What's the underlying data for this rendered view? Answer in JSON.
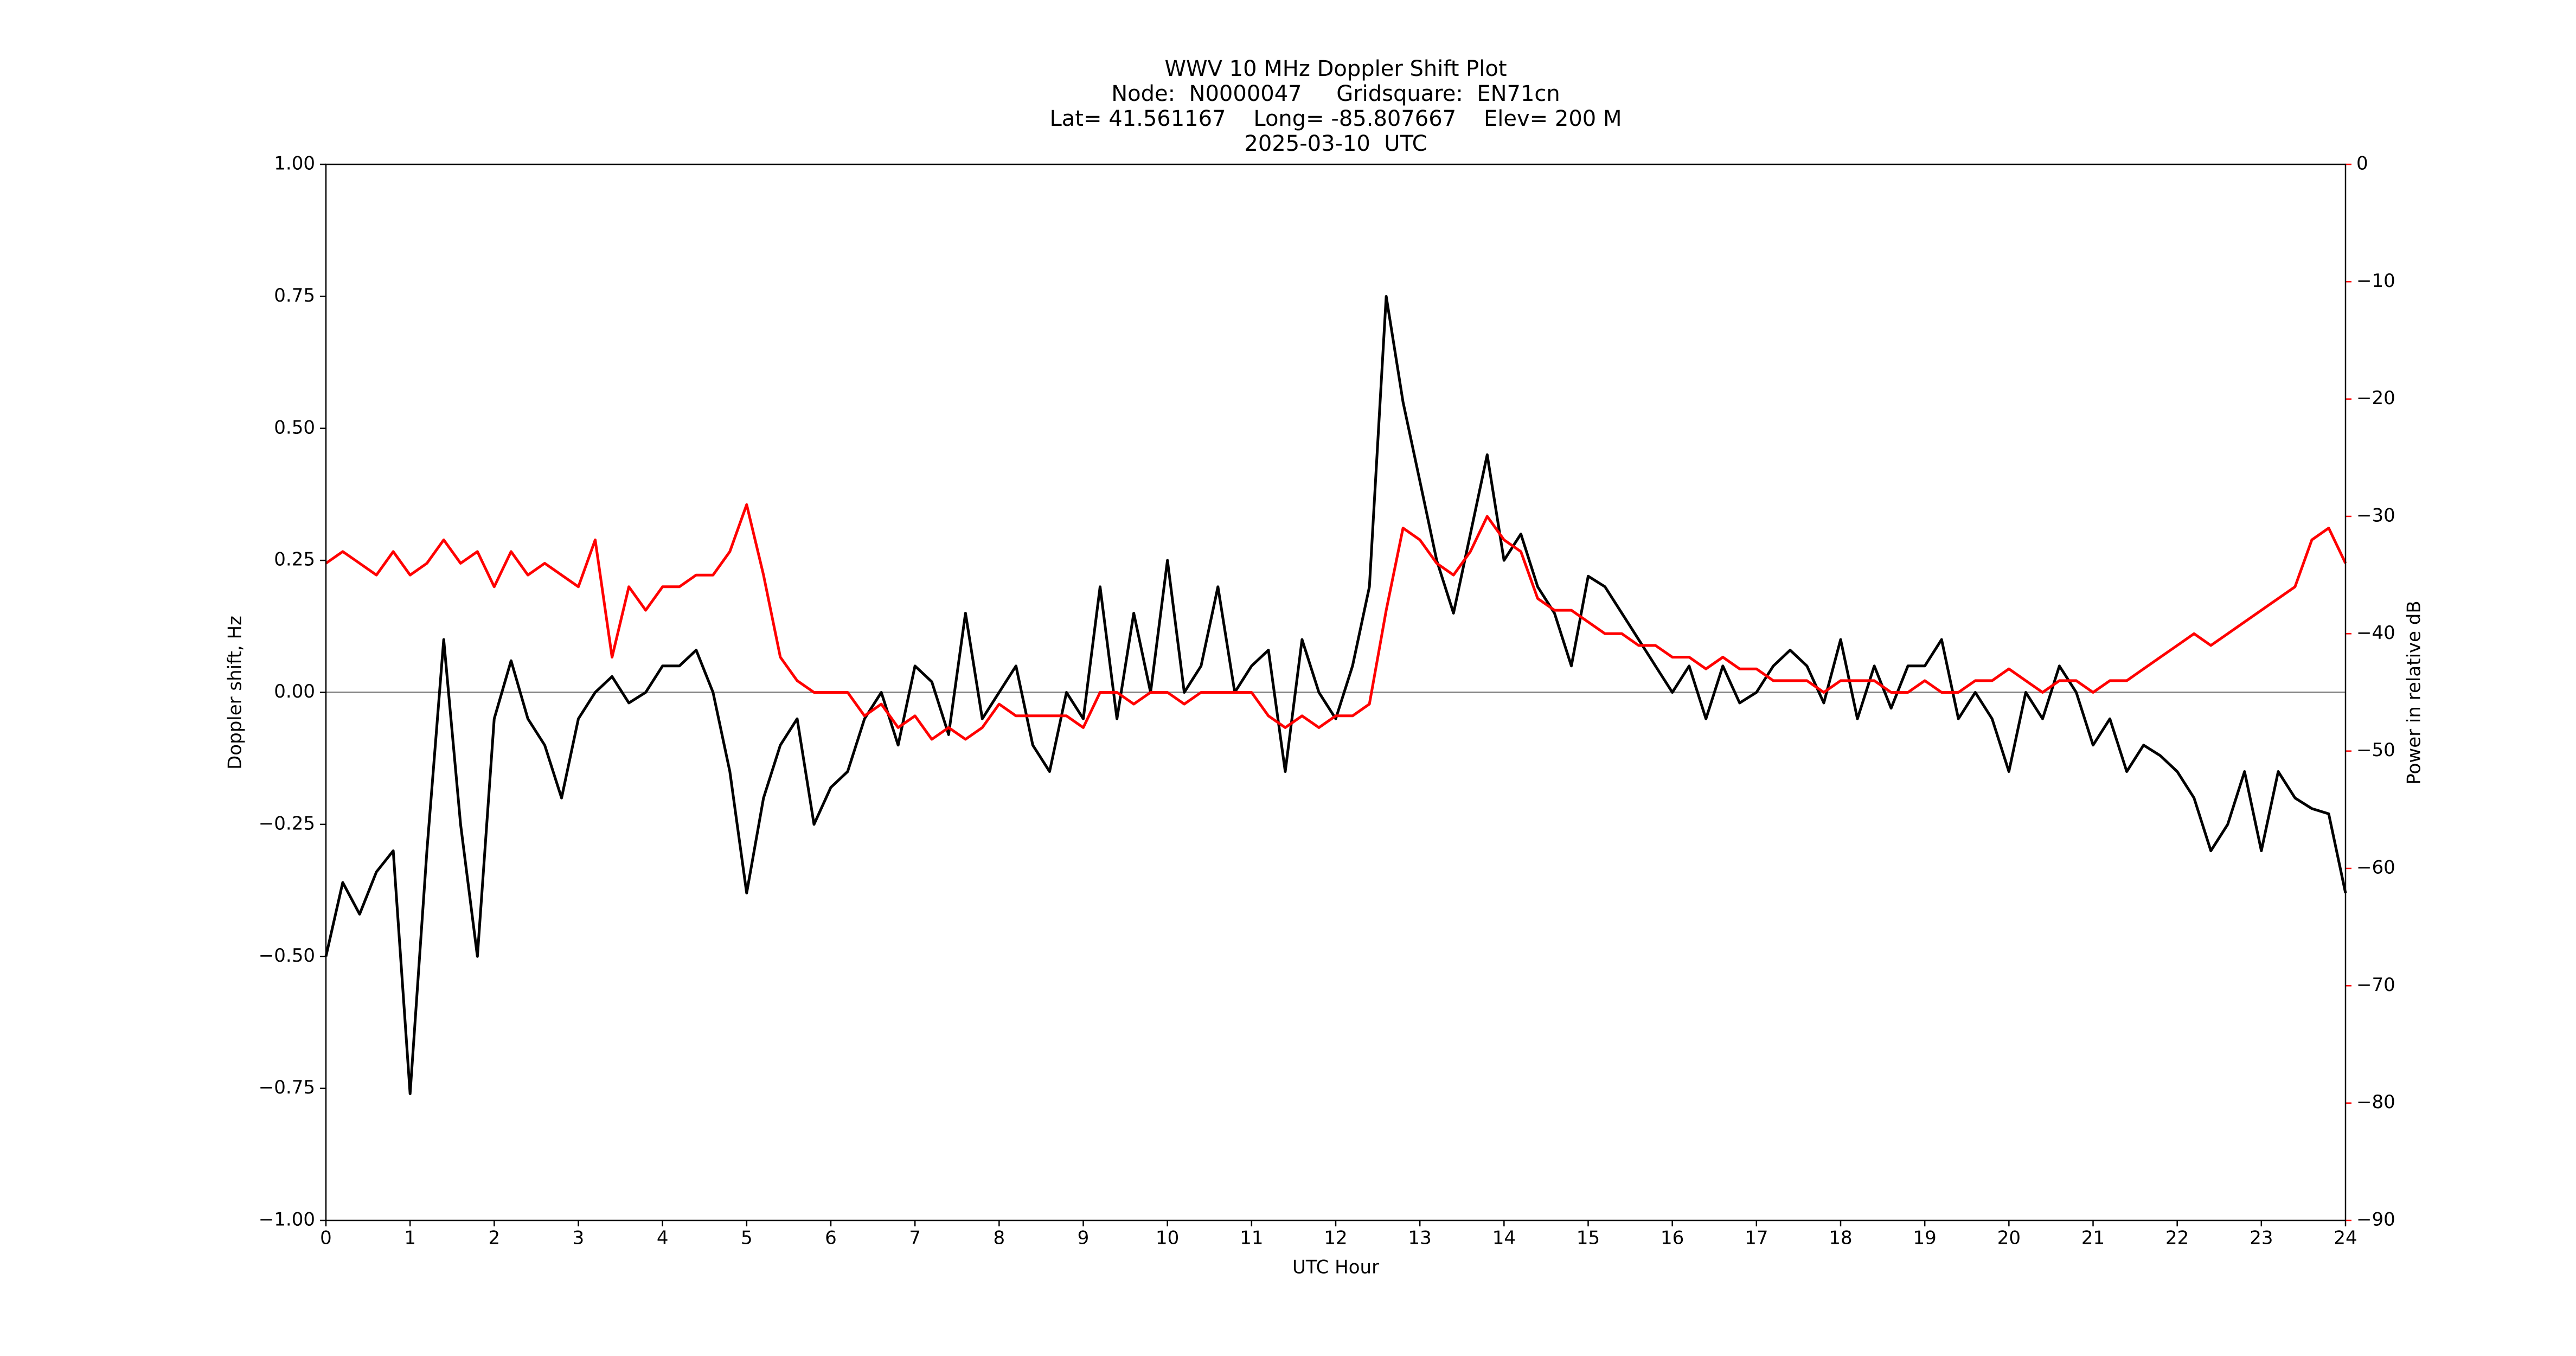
{
  "chart_data": {
    "type": "line",
    "title": "WWV 10 MHz Doppler Shift Plot",
    "subtitle": [
      "Node:  N0000047     Gridsquare:  EN71cn",
      "Lat= 41.561167    Long= -85.807667    Elev= 200 M",
      "2025-03-10  UTC"
    ],
    "xlabel": "UTC Hour",
    "ylabel": "Doppler shift, Hz",
    "y2label": "Power in relative dB",
    "y2color": "#ff0000",
    "zero_line": true,
    "xlim": [
      0,
      24
    ],
    "xticks": [
      0,
      1,
      2,
      3,
      4,
      5,
      6,
      7,
      8,
      9,
      10,
      11,
      12,
      13,
      14,
      15,
      16,
      17,
      18,
      19,
      20,
      21,
      22,
      23,
      24
    ],
    "ylim": [
      -1,
      1
    ],
    "yticks": [
      {
        "value": -1,
        "label": "−1.00"
      },
      {
        "value": -0.75,
        "label": "−0.75"
      },
      {
        "value": -0.5,
        "label": "−0.50"
      },
      {
        "value": -0.25,
        "label": "−0.25"
      },
      {
        "value": 0,
        "label": "0.00"
      },
      {
        "value": 0.25,
        "label": "0.25"
      },
      {
        "value": 0.5,
        "label": "0.50"
      },
      {
        "value": 0.75,
        "label": "0.75"
      },
      {
        "value": 1,
        "label": "1.00"
      }
    ],
    "y2lim": [
      -90,
      0
    ],
    "y2ticks": [
      {
        "value": -90,
        "label": "−90"
      },
      {
        "value": -80,
        "label": "−80"
      },
      {
        "value": -70,
        "label": "−70"
      },
      {
        "value": -60,
        "label": "−60"
      },
      {
        "value": -50,
        "label": "−50"
      },
      {
        "value": -40,
        "label": "−40"
      },
      {
        "value": -30,
        "label": "−30"
      },
      {
        "value": -20,
        "label": "−20"
      },
      {
        "value": -10,
        "label": "−10"
      },
      0
    ],
    "x": [
      0,
      0.2,
      0.4,
      0.6,
      0.8,
      1,
      1.2,
      1.4,
      1.6,
      1.8,
      2,
      2.2,
      2.4,
      2.6,
      2.8,
      3,
      3.2,
      3.4,
      3.6,
      3.8,
      4,
      4.2,
      4.4,
      4.6,
      4.8,
      5,
      5.2,
      5.4,
      5.6,
      5.8,
      6,
      6.2,
      6.4,
      6.6,
      6.8,
      7,
      7.2,
      7.4,
      7.6,
      7.8,
      8,
      8.2,
      8.4,
      8.6,
      8.8,
      9,
      9.2,
      9.4,
      9.6,
      9.8,
      10,
      10.2,
      10.4,
      10.6,
      10.8,
      11,
      11.2,
      11.4,
      11.6,
      11.8,
      12,
      12.2,
      12.4,
      12.6,
      12.8,
      13,
      13.2,
      13.4,
      13.6,
      13.8,
      14,
      14.2,
      14.4,
      14.6,
      14.8,
      15,
      15.2,
      15.4,
      15.6,
      15.8,
      16,
      16.2,
      16.4,
      16.6,
      16.8,
      17,
      17.2,
      17.4,
      17.6,
      17.8,
      18,
      18.2,
      18.4,
      18.6,
      18.8,
      19,
      19.2,
      19.4,
      19.6,
      19.8,
      20,
      20.2,
      20.4,
      20.6,
      20.8,
      21,
      21.2,
      21.4,
      21.6,
      21.8,
      22,
      22.2,
      22.4,
      22.6,
      22.8,
      23,
      23.2,
      23.4,
      23.6,
      23.8,
      24
    ],
    "series": [
      {
        "color": "#000000",
        "values": [
          -0.5,
          -0.36,
          -0.42,
          -0.34,
          -0.3,
          -0.76,
          -0.3,
          0.1,
          -0.25,
          -0.5,
          -0.05,
          0.06,
          -0.05,
          -0.1,
          -0.2,
          -0.05,
          0,
          0.03,
          -0.02,
          0,
          0.05,
          0.05,
          0.08,
          0,
          -0.15,
          -0.38,
          -0.2,
          -0.1,
          -0.05,
          -0.25,
          -0.18,
          -0.15,
          -0.05,
          0,
          -0.1,
          0.05,
          0.02,
          -0.08,
          0.15,
          -0.05,
          0,
          0.05,
          -0.1,
          -0.15,
          0,
          -0.05,
          0.2,
          -0.05,
          0.15,
          0,
          0.25,
          0,
          0.05,
          0.2,
          0,
          0.05,
          0.08,
          -0.15,
          0.1,
          0,
          -0.05,
          0.05,
          0.2,
          0.75,
          0.55,
          0.4,
          0.25,
          0.15,
          0.3,
          0.45,
          0.25,
          0.3,
          0.2,
          0.15,
          0.05,
          0.22,
          0.2,
          0.15,
          0.1,
          0.05,
          0,
          0.05,
          -0.05,
          0.05,
          -0.02,
          0,
          0.05,
          0.08,
          0.05,
          -0.02,
          0.1,
          -0.05,
          0.05,
          -0.03,
          0.05,
          0.05,
          0.1,
          -0.05,
          0,
          -0.05,
          -0.15,
          0,
          -0.05,
          0.05,
          0,
          -0.1,
          -0.05,
          -0.15,
          -0.1,
          -0.12,
          -0.15,
          -0.2,
          -0.3,
          -0.25,
          -0.15,
          -0.3,
          -0.15,
          -0.2,
          -0.22,
          -0.23,
          -0.38
        ]
      },
      {
        "color": "#ff0000",
        "axis": "y2",
        "values": [
          -34,
          -33,
          -34,
          -35,
          -33,
          -35,
          -34,
          -32,
          -34,
          -33,
          -36,
          -33,
          -35,
          -34,
          -35,
          -36,
          -32,
          -42,
          -36,
          -38,
          -36,
          -36,
          -35,
          -35,
          -33,
          -29,
          -35,
          -42,
          -44,
          -45,
          -45,
          -45,
          -47,
          -46,
          -48,
          -47,
          -49,
          -48,
          -49,
          -48,
          -46,
          -47,
          -47,
          -47,
          -47,
          -48,
          -45,
          -45,
          -46,
          -45,
          -45,
          -46,
          -45,
          -45,
          -45,
          -45,
          -47,
          -48,
          -47,
          -48,
          -47,
          -47,
          -46,
          -38,
          -31,
          -32,
          -34,
          -35,
          -33,
          -30,
          -32,
          -33,
          -37,
          -38,
          -38,
          -39,
          -40,
          -40,
          -41,
          -41,
          -42,
          -42,
          -43,
          -42,
          -43,
          -43,
          -44,
          -44,
          -44,
          -45,
          -44,
          -44,
          -44,
          -45,
          -45,
          -44,
          -45,
          -45,
          -44,
          -44,
          -43,
          -44,
          -45,
          -44,
          -44,
          -45,
          -44,
          -44,
          -43,
          -42,
          -41,
          -40,
          -41,
          -40,
          -39,
          -38,
          -37,
          -36,
          -32,
          -31,
          -34
        ]
      }
    ]
  }
}
